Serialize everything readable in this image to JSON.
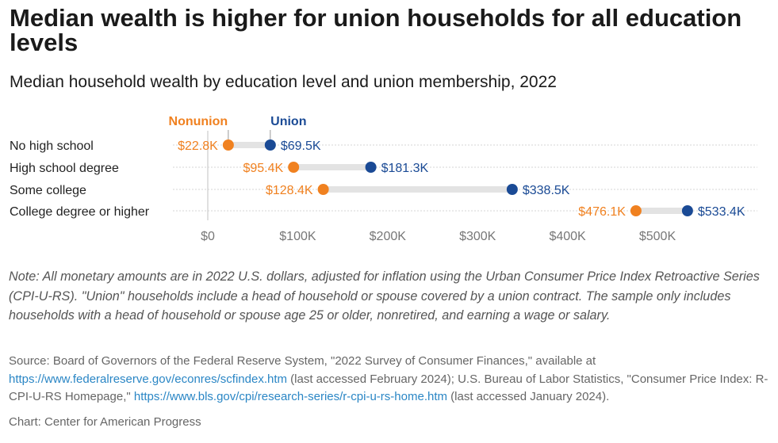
{
  "title": "Median wealth is higher for union households for all education levels",
  "subtitle": "Median household wealth by education level and union membership, 2022",
  "colors": {
    "nonunion": "#f08120",
    "union": "#1a4a95",
    "bar": "#e3e3e3",
    "grid": "#d4d4d4",
    "axis": "#777777",
    "label": "#222222"
  },
  "chart_data": {
    "type": "dumbbell",
    "title": "Median household wealth by education level and union membership, 2022",
    "xlabel": "",
    "ylabel": "",
    "xlim": [
      0,
      540000
    ],
    "xticks": [
      0,
      100000,
      200000,
      300000,
      400000,
      500000
    ],
    "xtick_labels": [
      "$0",
      "$100K",
      "$200K",
      "$300K",
      "$400K",
      "$500K"
    ],
    "categories": [
      "No high school",
      "High school degree",
      "Some college",
      "College degree or higher"
    ],
    "series": [
      {
        "name": "Nonunion",
        "values": [
          22800,
          95400,
          128400,
          476100
        ],
        "labels": [
          "$22.8K",
          "$95.4K",
          "$128.4K",
          "$476.1K"
        ]
      },
      {
        "name": "Union",
        "values": [
          69500,
          181300,
          338500,
          533400
        ],
        "labels": [
          "$69.5K",
          "$181.3K",
          "$338.5K",
          "$533.4K"
        ]
      }
    ],
    "legend": [
      "Nonunion",
      "Union"
    ]
  },
  "note": "Note: All monetary amounts are in 2022 U.S. dollars, adjusted for inflation using the Urban Consumer Price Index Retroactive Series (CPI-U-RS). \"Union\" households include a head of household or spouse covered by a union contract. The sample only includes households with a head of household or spouse age 25 or older, nonretired, and earning a wage or salary.",
  "source": {
    "prefix": "Source: Board of Governors of the Federal Reserve System, \"2022 Survey of Consumer Finances,\" available at ",
    "link1": "https://www.federalreserve.gov/econres/scfindex.htm",
    "middle": " (last accessed February 2024); U.S. Bureau of Labor Statistics, \"Consumer Price Index: R-CPI-U-RS Homepage,\" ",
    "link2": "https://www.bls.gov/cpi/research-series/r-cpi-u-rs-home.htm",
    "suffix": " (last accessed January 2024)."
  },
  "credit": "Chart: Center for American Progress"
}
